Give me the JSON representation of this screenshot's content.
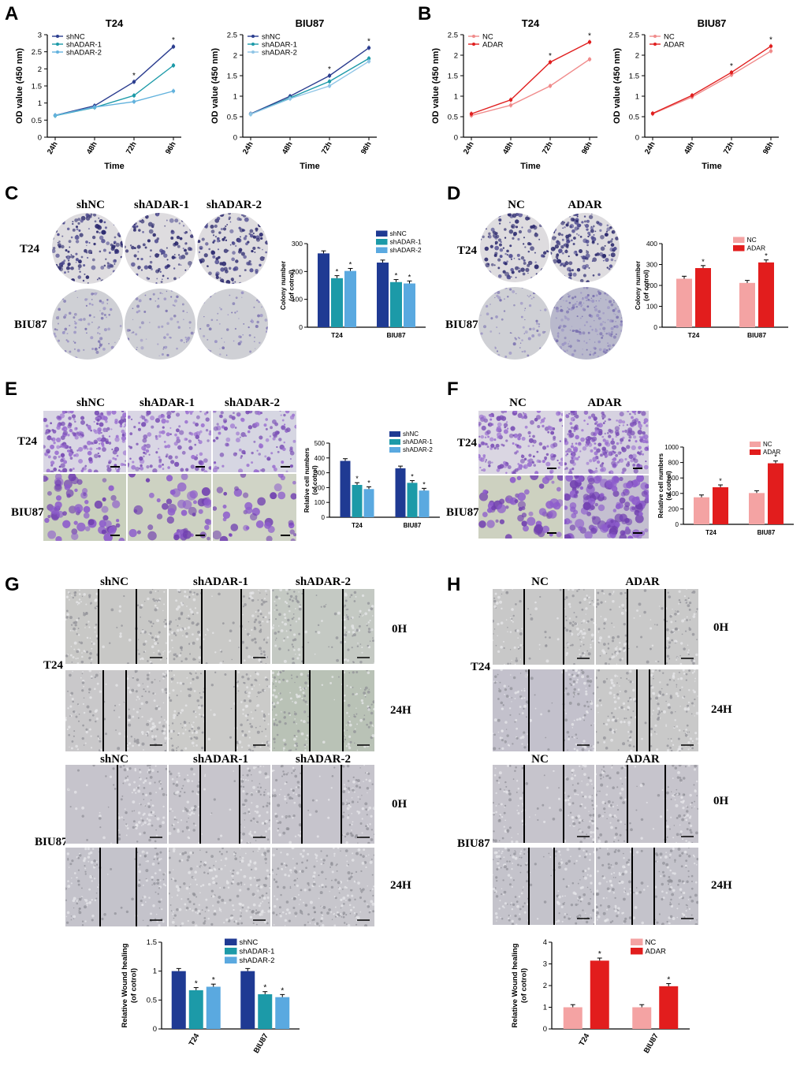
{
  "panels": {
    "A": {
      "letter": "A",
      "charts": [
        {
          "title": "T24",
          "ylabel": "OD value (450 nm)",
          "xlabel": "Time",
          "x": [
            "24h",
            "48h",
            "72h",
            "96h"
          ],
          "ylim": [
            0,
            3
          ],
          "yticks": [
            0,
            0.5,
            1,
            1.5,
            2,
            2.5,
            3
          ],
          "series": [
            {
              "name": "shNC",
              "color": "#2b3d8f",
              "values": [
                0.64,
                0.92,
                1.62,
                2.65
              ]
            },
            {
              "name": "shADAR-1",
              "color": "#1c9aa8",
              "values": [
                0.63,
                0.87,
                1.22,
                2.1
              ]
            },
            {
              "name": "shADAR-2",
              "color": "#62b2dd",
              "values": [
                0.64,
                0.88,
                1.04,
                1.35
              ]
            }
          ],
          "stars": [
            2,
            3
          ]
        },
        {
          "title": "BIU87",
          "ylabel": "OD value (450 nm)",
          "xlabel": "Time",
          "x": [
            "24h",
            "48h",
            "72h",
            "96h"
          ],
          "ylim": [
            0,
            2.5
          ],
          "yticks": [
            0,
            0.5,
            1,
            1.5,
            2,
            2.5
          ],
          "series": [
            {
              "name": "shNC",
              "color": "#2b3d8f",
              "values": [
                0.57,
                1.0,
                1.5,
                2.18
              ]
            },
            {
              "name": "shADAR-1",
              "color": "#1c9aa8",
              "values": [
                0.56,
                0.96,
                1.36,
                1.92
              ]
            },
            {
              "name": "shADAR-2",
              "color": "#8fc5e6",
              "values": [
                0.56,
                0.94,
                1.25,
                1.85
              ]
            }
          ],
          "stars": [
            2,
            3
          ]
        }
      ]
    },
    "B": {
      "letter": "B",
      "charts": [
        {
          "title": "T24",
          "ylabel": "OD value (450 nm)",
          "xlabel": "Time",
          "x": [
            "24h",
            "48h",
            "72h",
            "96h"
          ],
          "ylim": [
            0,
            2.5
          ],
          "yticks": [
            0,
            0.5,
            1,
            1.5,
            2,
            2.5
          ],
          "series": [
            {
              "name": "NC",
              "color": "#f08b8b",
              "values": [
                0.53,
                0.78,
                1.25,
                1.9
              ]
            },
            {
              "name": "ADAR",
              "color": "#e01f1f",
              "values": [
                0.57,
                0.91,
                1.83,
                2.32
              ]
            }
          ],
          "stars": [
            2,
            3
          ]
        },
        {
          "title": "BIU87",
          "ylabel": "OD value (450 nm)",
          "xlabel": "Time",
          "x": [
            "24h",
            "48h",
            "72h",
            "96h"
          ],
          "ylim": [
            0,
            2.5
          ],
          "yticks": [
            0,
            0.5,
            1,
            1.5,
            2,
            2.5
          ],
          "series": [
            {
              "name": "NC",
              "color": "#f08b8b",
              "values": [
                0.57,
                0.98,
                1.52,
                2.1
              ]
            },
            {
              "name": "ADAR",
              "color": "#e01f1f",
              "values": [
                0.58,
                1.02,
                1.58,
                2.22
              ]
            }
          ],
          "stars": [
            2,
            3
          ]
        }
      ]
    },
    "C": {
      "letter": "C",
      "columns": [
        "shNC",
        "shADAR-1",
        "shADAR-2"
      ],
      "rows": [
        "T24",
        "BIU87"
      ],
      "chart": {
        "ylabel": "Colony number\n(of cotrol)",
        "categories": [
          "T24",
          "BIU87"
        ],
        "ylim": [
          0,
          300
        ],
        "yticks": [
          0,
          100,
          200,
          300
        ],
        "series": [
          {
            "name": "shNC",
            "color": "#1f3a93",
            "values": [
              265,
              232
            ]
          },
          {
            "name": "shADAR-1",
            "color": "#1c9aa8",
            "values": [
              176,
              162
            ]
          },
          {
            "name": "shADAR-2",
            "color": "#5aa9e0",
            "values": [
              202,
              157
            ]
          }
        ],
        "star_series": [
          1,
          2
        ]
      }
    },
    "D": {
      "letter": "D",
      "columns": [
        "NC",
        "ADAR"
      ],
      "rows": [
        "T24",
        "BIU87"
      ],
      "chart": {
        "ylabel": "Colony number\n(of cotrol)",
        "categories": [
          "T24",
          "BIU87"
        ],
        "ylim": [
          0,
          400
        ],
        "yticks": [
          0,
          100,
          200,
          300,
          400
        ],
        "series": [
          {
            "name": "NC",
            "color": "#f4a3a3",
            "values": [
              232,
              212
            ]
          },
          {
            "name": "ADAR",
            "color": "#e21d1d",
            "values": [
              283,
              310
            ]
          }
        ],
        "star_series": [
          1
        ]
      }
    },
    "E": {
      "letter": "E",
      "columns": [
        "shNC",
        "shADAR-1",
        "shADAR-2"
      ],
      "rows": [
        "T24",
        "BIU87"
      ],
      "chart": {
        "ylabel": "Relative cell numbers\n(of cotrol)",
        "categories": [
          "T24",
          "BIU87"
        ],
        "ylim": [
          0,
          500
        ],
        "yticks": [
          0,
          100,
          200,
          300,
          400,
          500
        ],
        "series": [
          {
            "name": "shNC",
            "color": "#1f3a93",
            "values": [
              380,
              330
            ]
          },
          {
            "name": "shADAR-1",
            "color": "#1c9aa8",
            "values": [
              218,
              232
            ]
          },
          {
            "name": "shADAR-2",
            "color": "#5aa9e0",
            "values": [
              190,
              180
            ]
          }
        ],
        "star_series": [
          1,
          2
        ]
      }
    },
    "F": {
      "letter": "F",
      "columns": [
        "NC",
        "ADAR"
      ],
      "rows": [
        "T24",
        "BIU87"
      ],
      "chart": {
        "ylabel": "Relative cell numbers\n(of cotrol)",
        "categories": [
          "T24",
          "BIU87"
        ],
        "ylim": [
          0,
          1000
        ],
        "yticks": [
          0,
          200,
          400,
          600,
          800,
          1000
        ],
        "series": [
          {
            "name": "NC",
            "color": "#f4a3a3",
            "values": [
              350,
              405
            ]
          },
          {
            "name": "ADAR",
            "color": "#e21d1d",
            "values": [
              480,
              790
            ]
          }
        ],
        "star_series": [
          1
        ]
      }
    },
    "G": {
      "letter": "G",
      "columns": [
        "shNC",
        "shADAR-1",
        "shADAR-2"
      ],
      "rows": [
        "T24",
        "BIU87"
      ],
      "times": [
        "0H",
        "24H"
      ],
      "chart": {
        "ylabel": "Relative Wound healing\n(of cotrol)",
        "categories": [
          "T24",
          "BIU87"
        ],
        "ylim": [
          0,
          1.5
        ],
        "yticks": [
          0,
          0.5,
          1,
          1.5
        ],
        "series": [
          {
            "name": "shNC",
            "color": "#1f3a93",
            "values": [
              1.0,
              1.0
            ]
          },
          {
            "name": "shADAR-1",
            "color": "#1c9aa8",
            "values": [
              0.67,
              0.6
            ]
          },
          {
            "name": "shADAR-2",
            "color": "#5aa9e0",
            "values": [
              0.73,
              0.55
            ]
          }
        ],
        "star_series": [
          1,
          2
        ]
      }
    },
    "H": {
      "letter": "H",
      "columns": [
        "NC",
        "ADAR"
      ],
      "rows": [
        "T24",
        "BIU87"
      ],
      "times": [
        "0H",
        "24H"
      ],
      "chart": {
        "ylabel": "Relative Wound healing\n(of cotrol)",
        "categories": [
          "T24",
          "BIU87"
        ],
        "ylim": [
          0,
          4
        ],
        "yticks": [
          0,
          1,
          2,
          3,
          4
        ],
        "series": [
          {
            "name": "NC",
            "color": "#f4a3a3",
            "values": [
              1.0,
              1.0
            ]
          },
          {
            "name": "ADAR",
            "color": "#e21d1d",
            "values": [
              3.15,
              1.97
            ]
          }
        ],
        "star_series": [
          1
        ]
      }
    }
  },
  "chart_data": [
    {
      "type": "line",
      "title": "T24",
      "xlabel": "Time",
      "ylabel": "OD value (450 nm)",
      "x": [
        "24h",
        "48h",
        "72h",
        "96h"
      ],
      "ylim": [
        0,
        3
      ],
      "series": [
        {
          "name": "shNC",
          "values": [
            0.64,
            0.92,
            1.62,
            2.65
          ]
        },
        {
          "name": "shADAR-1",
          "values": [
            0.63,
            0.87,
            1.22,
            2.1
          ]
        },
        {
          "name": "shADAR-2",
          "values": [
            0.64,
            0.88,
            1.04,
            1.35
          ]
        }
      ]
    },
    {
      "type": "line",
      "title": "BIU87",
      "xlabel": "Time",
      "ylabel": "OD value (450 nm)",
      "x": [
        "24h",
        "48h",
        "72h",
        "96h"
      ],
      "ylim": [
        0,
        2.5
      ],
      "series": [
        {
          "name": "shNC",
          "values": [
            0.57,
            1.0,
            1.5,
            2.18
          ]
        },
        {
          "name": "shADAR-1",
          "values": [
            0.56,
            0.96,
            1.36,
            1.92
          ]
        },
        {
          "name": "shADAR-2",
          "values": [
            0.56,
            0.94,
            1.25,
            1.85
          ]
        }
      ]
    },
    {
      "type": "line",
      "title": "T24",
      "xlabel": "Time",
      "ylabel": "OD value (450 nm)",
      "x": [
        "24h",
        "48h",
        "72h",
        "96h"
      ],
      "ylim": [
        0,
        2.5
      ],
      "series": [
        {
          "name": "NC",
          "values": [
            0.53,
            0.78,
            1.25,
            1.9
          ]
        },
        {
          "name": "ADAR",
          "values": [
            0.57,
            0.91,
            1.83,
            2.32
          ]
        }
      ]
    },
    {
      "type": "line",
      "title": "BIU87",
      "xlabel": "Time",
      "ylabel": "OD value (450 nm)",
      "x": [
        "24h",
        "48h",
        "72h",
        "96h"
      ],
      "ylim": [
        0,
        2.5
      ],
      "series": [
        {
          "name": "NC",
          "values": [
            0.57,
            0.98,
            1.52,
            2.1
          ]
        },
        {
          "name": "ADAR",
          "values": [
            0.58,
            1.02,
            1.58,
            2.22
          ]
        }
      ]
    },
    {
      "type": "bar",
      "ylabel": "Colony number (of cotrol)",
      "categories": [
        "T24",
        "BIU87"
      ],
      "series": [
        {
          "name": "shNC",
          "values": [
            265,
            232
          ]
        },
        {
          "name": "shADAR-1",
          "values": [
            176,
            162
          ]
        },
        {
          "name": "shADAR-2",
          "values": [
            202,
            157
          ]
        }
      ]
    },
    {
      "type": "bar",
      "ylabel": "Colony number (of cotrol)",
      "categories": [
        "T24",
        "BIU87"
      ],
      "series": [
        {
          "name": "NC",
          "values": [
            232,
            212
          ]
        },
        {
          "name": "ADAR",
          "values": [
            283,
            310
          ]
        }
      ]
    },
    {
      "type": "bar",
      "ylabel": "Relative cell numbers (of cotrol)",
      "categories": [
        "T24",
        "BIU87"
      ],
      "series": [
        {
          "name": "shNC",
          "values": [
            380,
            330
          ]
        },
        {
          "name": "shADAR-1",
          "values": [
            218,
            232
          ]
        },
        {
          "name": "shADAR-2",
          "values": [
            190,
            180
          ]
        }
      ]
    },
    {
      "type": "bar",
      "ylabel": "Relative cell numbers (of cotrol)",
      "categories": [
        "T24",
        "BIU87"
      ],
      "series": [
        {
          "name": "NC",
          "values": [
            350,
            405
          ]
        },
        {
          "name": "ADAR",
          "values": [
            480,
            790
          ]
        }
      ]
    },
    {
      "type": "bar",
      "ylabel": "Relative Wound healing (of cotrol)",
      "categories": [
        "T24",
        "BIU87"
      ],
      "series": [
        {
          "name": "shNC",
          "values": [
            1.0,
            1.0
          ]
        },
        {
          "name": "shADAR-1",
          "values": [
            0.67,
            0.6
          ]
        },
        {
          "name": "shADAR-2",
          "values": [
            0.73,
            0.55
          ]
        }
      ]
    },
    {
      "type": "bar",
      "ylabel": "Relative Wound healing (of cotrol)",
      "categories": [
        "T24",
        "BIU87"
      ],
      "series": [
        {
          "name": "NC",
          "values": [
            1.0,
            1.0
          ]
        },
        {
          "name": "ADAR",
          "values": [
            3.15,
            1.97
          ]
        }
      ]
    }
  ]
}
